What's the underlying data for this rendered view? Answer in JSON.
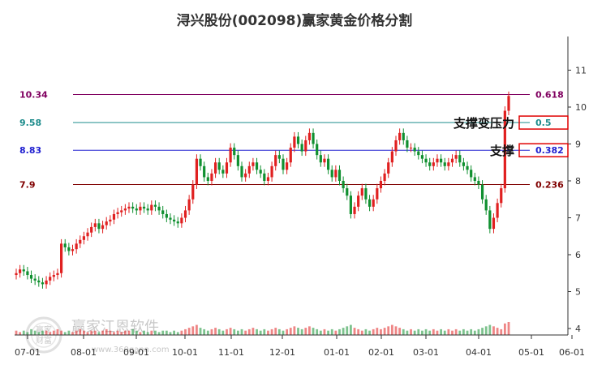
{
  "chart_data": {
    "type": "candlestick",
    "title": "浔兴股份(002098)赢家黄金价格分割",
    "x_ticks": [
      "07-01",
      "08-01",
      "09-01",
      "10-01",
      "11-01",
      "12-01",
      "01-01",
      "02-01",
      "03-01",
      "04-01",
      "05-01",
      "06-01"
    ],
    "y_ticks": [
      4,
      5,
      6,
      7,
      8,
      9,
      10,
      11
    ],
    "ylim": [
      4,
      11.3
    ],
    "levels": [
      {
        "price_label": "10.34",
        "ratio_label": "0.618",
        "value": 10.34,
        "color": "#800060"
      },
      {
        "price_label": "9.58",
        "ratio_label": "0.5",
        "value": 9.58,
        "color": "#1e8c8c"
      },
      {
        "price_label": "8.83",
        "ratio_label": "0.382",
        "value": 8.83,
        "color": "#2020d0"
      },
      {
        "price_label": "7.9",
        "ratio_label": "0.236",
        "value": 7.9,
        "color": "#800000"
      }
    ],
    "annotations": [
      {
        "text": "支撑变压力",
        "level": 9.58
      },
      {
        "text": "支撑",
        "level": 8.83
      }
    ],
    "closes": [
      5.5,
      5.6,
      5.55,
      5.45,
      5.35,
      5.3,
      5.25,
      5.2,
      5.3,
      5.4,
      5.45,
      5.5,
      6.3,
      6.2,
      6.1,
      6.15,
      6.3,
      6.4,
      6.5,
      6.6,
      6.75,
      6.85,
      6.7,
      6.8,
      6.9,
      6.95,
      7.1,
      7.15,
      7.2,
      7.25,
      7.3,
      7.25,
      7.2,
      7.3,
      7.25,
      7.2,
      7.35,
      7.3,
      7.2,
      7.1,
      7.0,
      6.95,
      6.9,
      6.85,
      7.0,
      7.2,
      7.5,
      7.9,
      8.6,
      8.4,
      8.1,
      8.0,
      8.2,
      8.5,
      8.3,
      8.2,
      8.5,
      8.9,
      8.7,
      8.4,
      8.1,
      8.2,
      8.4,
      8.5,
      8.3,
      8.2,
      8.0,
      8.1,
      8.4,
      8.7,
      8.6,
      8.3,
      8.5,
      8.9,
      9.2,
      9.0,
      8.8,
      9.1,
      9.3,
      9.0,
      8.7,
      8.5,
      8.6,
      8.3,
      8.1,
      8.3,
      8.0,
      7.8,
      7.6,
      7.1,
      7.3,
      7.6,
      7.8,
      7.5,
      7.3,
      7.5,
      7.8,
      8.0,
      8.2,
      8.5,
      8.8,
      9.1,
      9.3,
      9.1,
      8.9,
      8.9,
      8.8,
      8.7,
      8.6,
      8.5,
      8.4,
      8.5,
      8.6,
      8.5,
      8.4,
      8.5,
      8.6,
      8.7,
      8.5,
      8.4,
      8.3,
      8.1,
      8.0,
      7.9,
      7.5,
      7.2,
      6.7,
      7.0,
      7.4,
      7.8,
      9.9,
      10.3
    ],
    "volumes": [
      3,
      2,
      3,
      2,
      4,
      3,
      2,
      3,
      3,
      2,
      3,
      4,
      3,
      2,
      3,
      2,
      3,
      4,
      3,
      2,
      3,
      3,
      2,
      3,
      4,
      3,
      2,
      3,
      2,
      3,
      3,
      4,
      3,
      2,
      3,
      2,
      3,
      3,
      2,
      3,
      3,
      2,
      3,
      2,
      3,
      4,
      5,
      6,
      7,
      5,
      4,
      3,
      4,
      5,
      4,
      3,
      4,
      5,
      4,
      3,
      4,
      3,
      4,
      5,
      4,
      3,
      4,
      3,
      4,
      5,
      4,
      3,
      4,
      5,
      6,
      5,
      4,
      5,
      6,
      5,
      4,
      3,
      4,
      3,
      4,
      3,
      4,
      5,
      6,
      7,
      5,
      4,
      3,
      4,
      3,
      4,
      5,
      4,
      5,
      6,
      7,
      6,
      5,
      4,
      3,
      4,
      3,
      4,
      3,
      4,
      3,
      4,
      3,
      4,
      3,
      4,
      3,
      4,
      3,
      4,
      3,
      4,
      3,
      4,
      5,
      6,
      7,
      6,
      5,
      4,
      8,
      9
    ]
  },
  "watermark": {
    "brand": "赢家江恩软件",
    "url": "www.360gann.com",
    "seal_top": "赢家",
    "seal_bottom": "财富"
  }
}
